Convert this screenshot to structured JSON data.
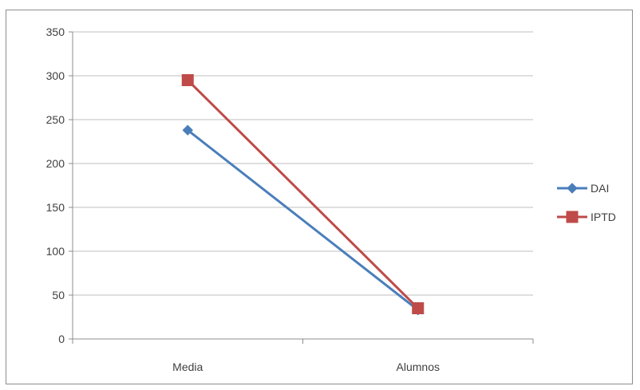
{
  "chart_data": {
    "type": "line",
    "title": "",
    "xlabel": "",
    "ylabel": "",
    "categories": [
      "Media",
      "Alumnos"
    ],
    "ylim": [
      0,
      350
    ],
    "yticks": [
      0,
      50,
      100,
      150,
      200,
      250,
      300,
      350
    ],
    "grid": true,
    "legend_position": "right",
    "series": [
      {
        "name": "DAI",
        "values": [
          238,
          33
        ],
        "color": "#4a7ebb",
        "marker": "diamond"
      },
      {
        "name": "IPTD",
        "values": [
          295,
          35
        ],
        "color": "#be4b48",
        "marker": "square"
      }
    ]
  }
}
